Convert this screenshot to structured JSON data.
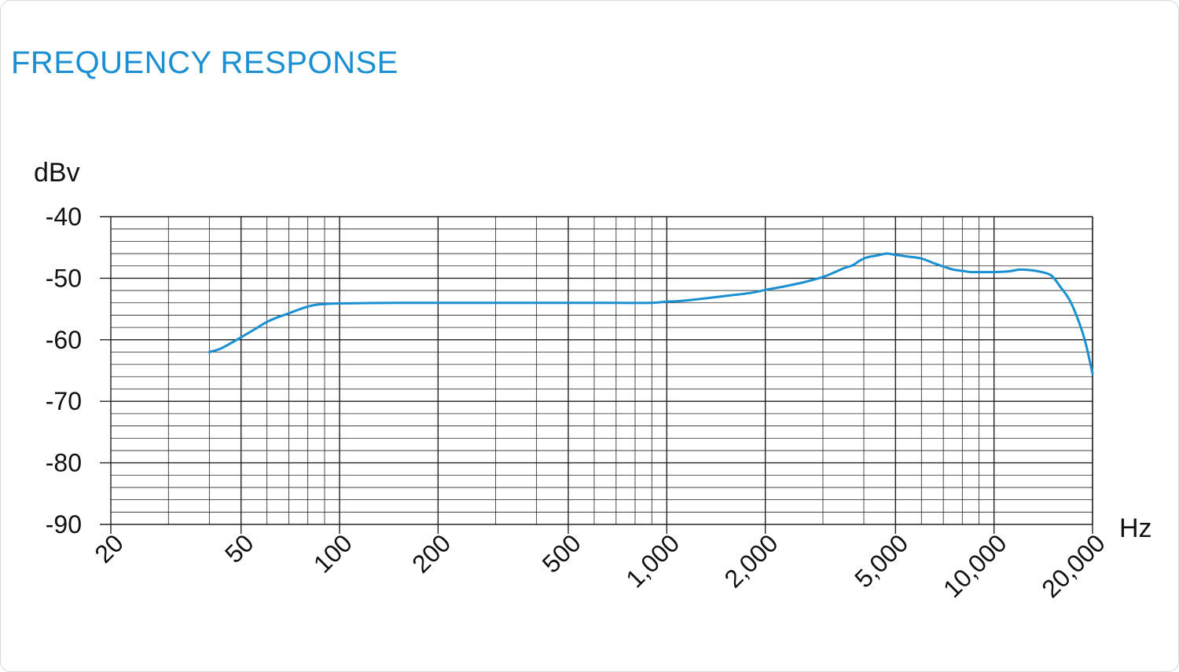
{
  "title": "FREQUENCY RESPONSE",
  "colors": {
    "title": "#1a8fd1",
    "curve": "#1a8fd1",
    "grid": "#222222",
    "text": "#111111"
  },
  "chart_data": {
    "type": "line",
    "title": "FREQUENCY RESPONSE",
    "xlabel": "Hz",
    "ylabel": "dBv",
    "x_scale": "log",
    "xlim": [
      20,
      20000
    ],
    "ylim": [
      -90,
      -40
    ],
    "grid": true,
    "x_ticks": [
      {
        "value": 20,
        "label": "20"
      },
      {
        "value": 50,
        "label": "50"
      },
      {
        "value": 100,
        "label": "100"
      },
      {
        "value": 200,
        "label": "200"
      },
      {
        "value": 500,
        "label": "500"
      },
      {
        "value": 1000,
        "label": "1,000"
      },
      {
        "value": 2000,
        "label": "2,000"
      },
      {
        "value": 5000,
        "label": "5,000"
      },
      {
        "value": 10000,
        "label": "10,000"
      },
      {
        "value": 20000,
        "label": "20,000"
      }
    ],
    "y_ticks": [
      {
        "value": -40,
        "label": "-40"
      },
      {
        "value": -50,
        "label": "-50"
      },
      {
        "value": -60,
        "label": "-60"
      },
      {
        "value": -70,
        "label": "-70"
      },
      {
        "value": -80,
        "label": "-80"
      },
      {
        "value": -90,
        "label": "-90"
      }
    ],
    "series": [
      {
        "points": [
          [
            40,
            -62.0
          ],
          [
            43,
            -61.5
          ],
          [
            46,
            -60.7
          ],
          [
            50,
            -59.6
          ],
          [
            55,
            -58.3
          ],
          [
            60,
            -57.1
          ],
          [
            65,
            -56.3
          ],
          [
            70,
            -55.7
          ],
          [
            75,
            -55.1
          ],
          [
            80,
            -54.6
          ],
          [
            85,
            -54.3
          ],
          [
            90,
            -54.2
          ],
          [
            100,
            -54.1
          ],
          [
            150,
            -54.0
          ],
          [
            200,
            -54.0
          ],
          [
            300,
            -54.0
          ],
          [
            500,
            -54.0
          ],
          [
            700,
            -54.0
          ],
          [
            900,
            -54.0
          ],
          [
            1000,
            -53.8
          ],
          [
            1100,
            -53.7
          ],
          [
            1300,
            -53.3
          ],
          [
            1500,
            -52.9
          ],
          [
            1800,
            -52.4
          ],
          [
            2000,
            -51.9
          ],
          [
            2300,
            -51.3
          ],
          [
            2600,
            -50.7
          ],
          [
            3000,
            -49.8
          ],
          [
            3300,
            -48.9
          ],
          [
            3500,
            -48.3
          ],
          [
            3700,
            -47.9
          ],
          [
            3900,
            -47.1
          ],
          [
            4100,
            -46.6
          ],
          [
            4400,
            -46.3
          ],
          [
            4700,
            -46.0
          ],
          [
            5000,
            -46.2
          ],
          [
            5500,
            -46.5
          ],
          [
            6000,
            -46.8
          ],
          [
            6500,
            -47.5
          ],
          [
            7000,
            -48.1
          ],
          [
            7500,
            -48.6
          ],
          [
            8000,
            -48.8
          ],
          [
            8500,
            -49.0
          ],
          [
            9000,
            -49.0
          ],
          [
            10000,
            -49.0
          ],
          [
            11000,
            -48.9
          ],
          [
            12000,
            -48.6
          ],
          [
            13000,
            -48.7
          ],
          [
            14000,
            -49.0
          ],
          [
            15000,
            -49.6
          ],
          [
            16000,
            -51.5
          ],
          [
            17000,
            -53.5
          ],
          [
            18000,
            -56.5
          ],
          [
            19000,
            -60.3
          ],
          [
            20000,
            -65.5
          ]
        ]
      }
    ]
  }
}
